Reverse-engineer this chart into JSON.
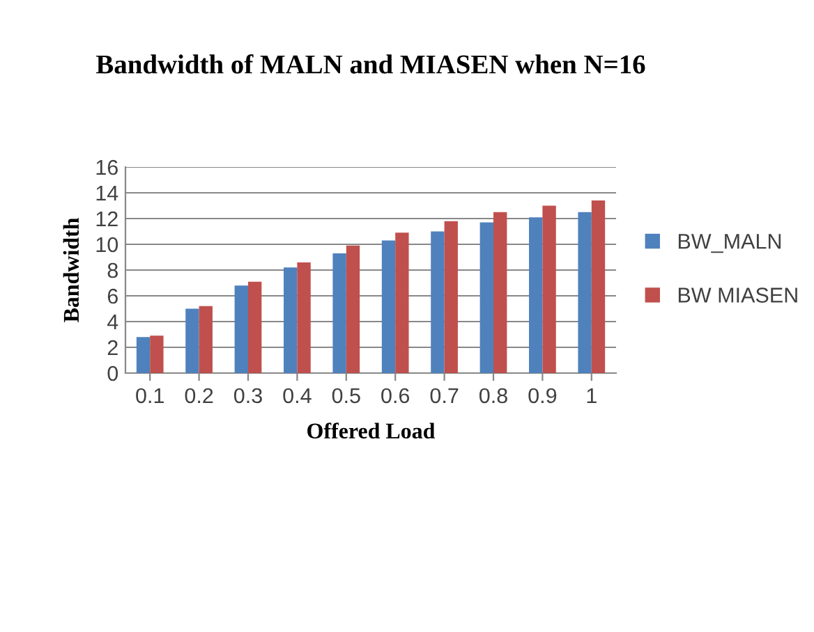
{
  "chart_data": {
    "type": "bar",
    "title": "Bandwidth of MALN and MIASEN when N=16",
    "xlabel": "Offered Load",
    "ylabel": "Bandwidth",
    "categories": [
      "0.1",
      "0.2",
      "0.3",
      "0.4",
      "0.5",
      "0.6",
      "0.7",
      "0.8",
      "0.9",
      "1"
    ],
    "series": [
      {
        "name": "BW_MALN",
        "color": "#4f81bd",
        "values": [
          2.8,
          5.0,
          6.8,
          8.2,
          9.3,
          10.3,
          11.0,
          11.7,
          12.1,
          12.5
        ]
      },
      {
        "name": "BW MIASEN",
        "color": "#c0504d",
        "values": [
          2.9,
          5.2,
          7.1,
          8.6,
          9.9,
          10.9,
          11.8,
          12.5,
          13.0,
          13.4
        ]
      }
    ],
    "ylim": [
      0,
      16
    ],
    "yticks": [
      0,
      2,
      4,
      6,
      8,
      10,
      12,
      14,
      16
    ],
    "grid": "y",
    "legend": "right"
  }
}
